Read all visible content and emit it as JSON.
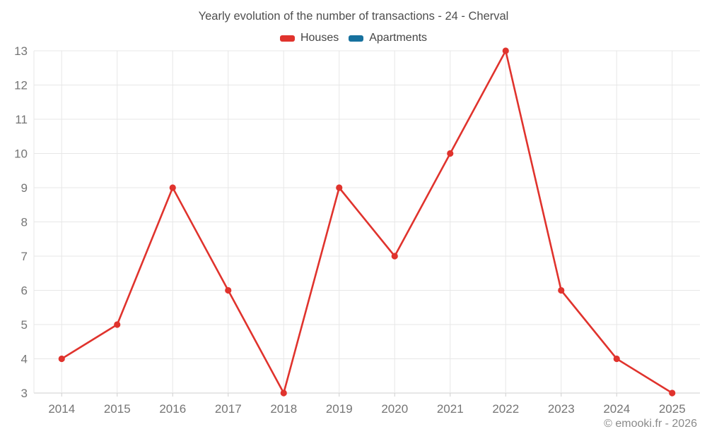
{
  "title": "Yearly evolution of the number of transactions - 24 - Cherval",
  "legend": [
    {
      "label": "Houses",
      "color": "#e0332d"
    },
    {
      "label": "Apartments",
      "color": "#17719e"
    }
  ],
  "footer": "© emooki.fr - 2026",
  "colors": {
    "houses": "#e0332d",
    "apartments": "#17719e",
    "gridline": "#e7e7e7",
    "axis_line": "#cfcfcf",
    "tick_label": "#757575",
    "title_text": "#4f4f4f",
    "background": "#ffffff"
  },
  "chart_data": {
    "type": "line",
    "title": "Yearly evolution of the number of transactions - 24 - Cherval",
    "categories": [
      "2014",
      "2015",
      "2016",
      "2017",
      "2018",
      "2019",
      "2020",
      "2021",
      "2022",
      "2023",
      "2024",
      "2025"
    ],
    "series": [
      {
        "name": "Houses",
        "color": "#e0332d",
        "values": [
          4,
          5,
          9,
          6,
          3,
          9,
          7,
          10,
          13,
          6,
          4,
          3
        ]
      },
      {
        "name": "Apartments",
        "color": "#17719e",
        "values": []
      }
    ],
    "xlabel": "",
    "ylabel": "",
    "ylim": [
      3,
      13
    ],
    "yticks": [
      3,
      4,
      5,
      6,
      7,
      8,
      9,
      10,
      11,
      12,
      13
    ],
    "grid": true,
    "legend_position": "top",
    "marker": "circle"
  }
}
